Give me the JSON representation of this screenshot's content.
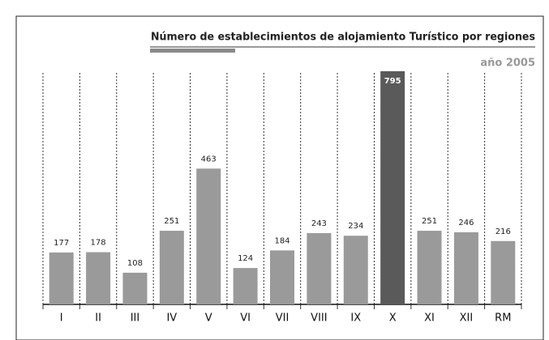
{
  "chart_data": {
    "type": "bar",
    "title": "Número de establecimientos de alojamiento Turístico por regiones",
    "subtitle": "año 2005",
    "categories": [
      "I",
      "II",
      "III",
      "IV",
      "V",
      "VI",
      "VII",
      "VIII",
      "IX",
      "X",
      "XI",
      "XII",
      "RM"
    ],
    "values": [
      177,
      178,
      108,
      251,
      463,
      124,
      184,
      243,
      234,
      795,
      251,
      246,
      216
    ],
    "colors": [
      "#9a9a9a",
      "#9a9a9a",
      "#9a9a9a",
      "#9a9a9a",
      "#9a9a9a",
      "#9a9a9a",
      "#9a9a9a",
      "#9a9a9a",
      "#9a9a9a",
      "#5a5a5a",
      "#9a9a9a",
      "#9a9a9a",
      "#9a9a9a"
    ]
  }
}
